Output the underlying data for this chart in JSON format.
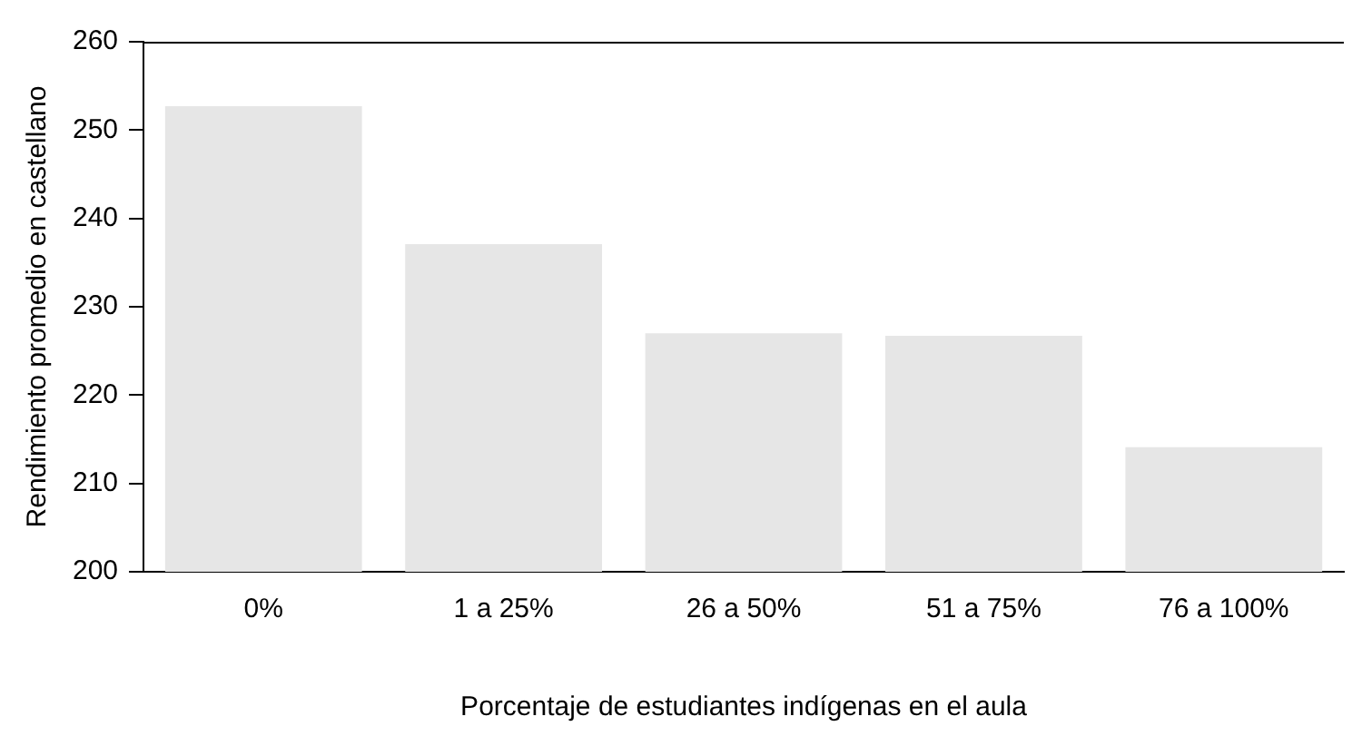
{
  "chart_data": {
    "type": "bar",
    "xlabel": "Porcentaje de estudiantes indígenas en el aula",
    "ylabel": "Rendimiento promedio en castellano",
    "categories": [
      "0%",
      "1 a 25%",
      "26 a 50%",
      "51 a 75%",
      "76 a 100%"
    ],
    "values": [
      252.7,
      237.1,
      227,
      226.7,
      214.1
    ],
    "color": "#e6e6e6",
    "ylim": [
      200,
      260
    ],
    "yticks": [
      200,
      210,
      220,
      230,
      240,
      250,
      260
    ],
    "grid": false
  }
}
